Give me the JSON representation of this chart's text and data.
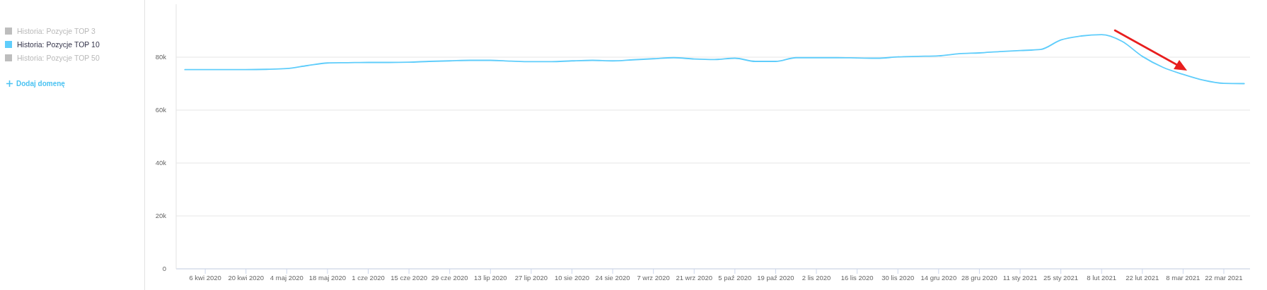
{
  "chart_data": {
    "type": "line",
    "x": [
      "2020-03-30",
      "2020-04-06",
      "2020-04-13",
      "2020-04-20",
      "2020-04-27",
      "2020-05-04",
      "2020-05-11",
      "2020-05-18",
      "2020-05-25",
      "2020-06-01",
      "2020-06-08",
      "2020-06-15",
      "2020-06-22",
      "2020-06-29",
      "2020-07-06",
      "2020-07-13",
      "2020-07-20",
      "2020-07-27",
      "2020-08-03",
      "2020-08-10",
      "2020-08-17",
      "2020-08-24",
      "2020-08-31",
      "2020-09-07",
      "2020-09-14",
      "2020-09-21",
      "2020-09-28",
      "2020-10-05",
      "2020-10-12",
      "2020-10-19",
      "2020-10-26",
      "2020-11-02",
      "2020-11-09",
      "2020-11-16",
      "2020-11-23",
      "2020-11-30",
      "2020-12-07",
      "2020-12-14",
      "2020-12-21",
      "2020-12-28",
      "2021-01-04",
      "2021-01-11",
      "2021-01-18",
      "2021-01-25",
      "2021-02-01",
      "2021-02-08",
      "2021-02-15",
      "2021-02-22",
      "2021-03-01",
      "2021-03-08",
      "2021-03-15",
      "2021-03-22",
      "2021-03-29"
    ],
    "series": [
      {
        "name": "Historia: Pozycje TOP 3",
        "color": "#bdbdbd",
        "values": [
          null,
          null,
          null,
          null,
          null,
          null,
          null,
          null,
          null,
          null,
          null,
          null,
          null,
          null,
          null,
          null,
          null,
          null,
          null,
          null,
          null,
          null,
          null,
          null,
          null,
          null,
          null,
          null,
          null,
          null,
          null,
          null,
          null,
          null,
          null,
          null,
          null,
          null,
          null,
          null,
          null,
          null,
          null,
          null,
          null,
          null,
          null,
          null,
          null,
          null,
          null,
          null,
          null
        ]
      },
      {
        "name": "Historia: Pozycje TOP 10",
        "color": "#5fcdfb",
        "values": [
          75300,
          75300,
          75300,
          75300,
          75400,
          75700,
          76800,
          77800,
          77900,
          78000,
          78000,
          78100,
          78400,
          78600,
          78800,
          78800,
          78500,
          78300,
          78300,
          78600,
          78800,
          78600,
          79000,
          79400,
          79800,
          79300,
          79100,
          79600,
          78400,
          78400,
          79800,
          79800,
          79800,
          79700,
          79600,
          80100,
          80300,
          80500,
          81300,
          81600,
          82100,
          82500,
          82900,
          86500,
          88000,
          88500,
          86000,
          80300,
          76200,
          73500,
          71300,
          70100,
          70000
        ]
      },
      {
        "name": "Historia: Pozycje TOP 50",
        "color": "#bdbdbd",
        "values": [
          null,
          null,
          null,
          null,
          null,
          null,
          null,
          null,
          null,
          null,
          null,
          null,
          null,
          null,
          null,
          null,
          null,
          null,
          null,
          null,
          null,
          null,
          null,
          null,
          null,
          null,
          null,
          null,
          null,
          null,
          null,
          null,
          null,
          null,
          null,
          null,
          null,
          null,
          null,
          null,
          null,
          null,
          null,
          null,
          null,
          null,
          null,
          null,
          null,
          null,
          null,
          null,
          null
        ]
      }
    ],
    "xlim": [
      "2020-03-27",
      "2021-03-31"
    ],
    "xticks": [
      {
        "value": "2020-04-06",
        "label": "6 kwi 2020"
      },
      {
        "value": "2020-04-20",
        "label": "20 kwi 2020"
      },
      {
        "value": "2020-05-04",
        "label": "4 maj 2020"
      },
      {
        "value": "2020-05-18",
        "label": "18 maj 2020"
      },
      {
        "value": "2020-06-01",
        "label": "1 cze 2020"
      },
      {
        "value": "2020-06-15",
        "label": "15 cze 2020"
      },
      {
        "value": "2020-06-29",
        "label": "29 cze 2020"
      },
      {
        "value": "2020-07-13",
        "label": "13 lip 2020"
      },
      {
        "value": "2020-07-27",
        "label": "27 lip 2020"
      },
      {
        "value": "2020-08-10",
        "label": "10 sie 2020"
      },
      {
        "value": "2020-08-24",
        "label": "24 sie 2020"
      },
      {
        "value": "2020-09-07",
        "label": "7 wrz 2020"
      },
      {
        "value": "2020-09-21",
        "label": "21 wrz 2020"
      },
      {
        "value": "2020-10-05",
        "label": "5 paź 2020"
      },
      {
        "value": "2020-10-19",
        "label": "19 paź 2020"
      },
      {
        "value": "2020-11-02",
        "label": "2 lis 2020"
      },
      {
        "value": "2020-11-16",
        "label": "16 lis 2020"
      },
      {
        "value": "2020-11-30",
        "label": "30 lis 2020"
      },
      {
        "value": "2020-12-14",
        "label": "14 gru 2020"
      },
      {
        "value": "2020-12-28",
        "label": "28 gru 2020"
      },
      {
        "value": "2021-01-11",
        "label": "11 sty 2021"
      },
      {
        "value": "2021-01-25",
        "label": "25 sty 2021"
      },
      {
        "value": "2021-02-08",
        "label": "8 lut 2021"
      },
      {
        "value": "2021-02-22",
        "label": "22 lut 2021"
      },
      {
        "value": "2021-03-08",
        "label": "8 mar 2021"
      },
      {
        "value": "2021-03-22",
        "label": "22 mar 2021"
      }
    ],
    "ylim": [
      0,
      100000
    ],
    "yticks": [
      0,
      {
        "value": 20000,
        "label": "20k"
      },
      {
        "value": 40000,
        "label": "40k"
      },
      {
        "value": 60000,
        "label": "60k"
      },
      {
        "value": 80000,
        "label": "80k"
      }
    ],
    "grid": "y",
    "legend": "top left",
    "marker": "none",
    "annotations": [
      "Dodaj domenę"
    ]
  }
}
